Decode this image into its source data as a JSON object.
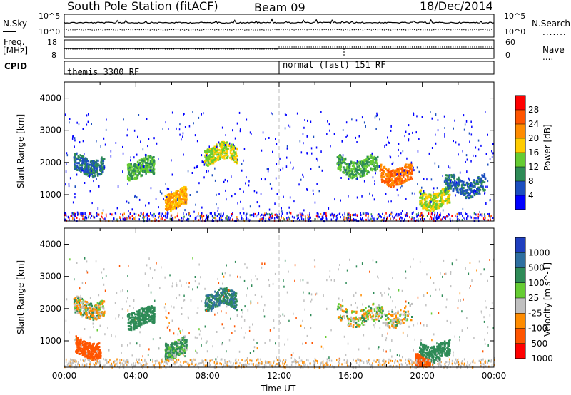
{
  "header": {
    "title": "South Pole Station (fitACF)",
    "beam": "Beam 09",
    "date": "18/Dec/2014"
  },
  "sidebar": {
    "nsky_label": "N.Sky",
    "freq_label_line1": "Freq.",
    "freq_label_line2": "[MHz]",
    "cpid_label": "CPID",
    "nsearch_label": "N.Search",
    "nave_label": "Nave"
  },
  "top_panels": {
    "noise_ticks_left": [
      "10^5",
      "10^0"
    ],
    "noise_ticks_right": [
      "10^5",
      "10^0"
    ],
    "freq_ticks_left": [
      "18",
      "8"
    ],
    "nave_ticks_right": [
      "60",
      "0"
    ],
    "cpid_segments": [
      "themis 3300 RF",
      "normal (fast) 151 RF"
    ]
  },
  "colors": {
    "power": [
      "#0000ff",
      "#1c4fbf",
      "#2e8b57",
      "#66cc33",
      "#ffcc00",
      "#ff8c00",
      "#ff5500",
      "#ff0000"
    ],
    "velocity": [
      "#1f3fbf",
      "#2e6fa0",
      "#2e8b57",
      "#66cc33",
      "#c0c0c0",
      "#ff8c00",
      "#ff5500",
      "#ff0000"
    ],
    "ground_scatter": "#c0c0c0"
  },
  "chart_data": [
    {
      "type": "heatmap",
      "name": "power",
      "xlabel": "",
      "ylabel": "Slant Range [km]",
      "ylim": [
        180,
        4500
      ],
      "yticks": [
        "1000",
        "2000",
        "3000",
        "4000"
      ],
      "xlim": [
        "00:00",
        "24:00"
      ],
      "colorbar_label": "Power [dB]",
      "colorbar_ticks": [
        "4",
        "8",
        "12",
        "16",
        "20",
        "24",
        "28"
      ],
      "features": [
        {
          "t_start": 0.5,
          "t_end": 2.2,
          "r_center": 1950,
          "level": 8
        },
        {
          "t_start": 3.5,
          "t_end": 5.0,
          "r_center": 1850,
          "level": 12
        },
        {
          "t_start": 5.6,
          "t_end": 6.8,
          "r_center": 900,
          "level": 20
        },
        {
          "t_start": 7.8,
          "t_end": 9.6,
          "r_center": 2300,
          "level": 16
        },
        {
          "t_start": 15.2,
          "t_end": 17.5,
          "r_center": 1900,
          "level": 12
        },
        {
          "t_start": 17.6,
          "t_end": 19.4,
          "r_center": 1650,
          "level": 24
        },
        {
          "t_start": 19.8,
          "t_end": 21.5,
          "r_center": 900,
          "level": 16
        },
        {
          "t_start": 21.2,
          "t_end": 23.5,
          "r_center": 1300,
          "level": 8
        }
      ]
    },
    {
      "type": "heatmap",
      "name": "velocity",
      "xlabel": "Time UT",
      "ylabel": "Slant Range [km]",
      "ylim": [
        180,
        4500
      ],
      "yticks": [
        "1000",
        "2000",
        "3000",
        "4000"
      ],
      "xlim": [
        "00:00",
        "24:00"
      ],
      "xticks": [
        "00:00",
        "04:00",
        "08:00",
        "12:00",
        "16:00",
        "20:00",
        "00:00"
      ],
      "colorbar_label": "Velocity [m s^-1]",
      "colorbar_ticks": [
        "1000",
        "500",
        "100",
        "25",
        "-25",
        "-100",
        "-500",
        "-1000"
      ],
      "features": [
        {
          "t_start": 0.5,
          "t_end": 2.2,
          "r_center": 2050,
          "velocity": 0
        },
        {
          "t_start": 0.6,
          "t_end": 2.0,
          "r_center": 800,
          "velocity": -300
        },
        {
          "t_start": 3.5,
          "t_end": 5.0,
          "r_center": 1750,
          "velocity": 150
        },
        {
          "t_start": 5.6,
          "t_end": 6.8,
          "r_center": 800,
          "velocity": 80
        },
        {
          "t_start": 7.8,
          "t_end": 9.6,
          "r_center": 2300,
          "velocity": 300
        },
        {
          "t_start": 15.2,
          "t_end": 19.4,
          "r_center": 1800,
          "velocity": 0
        },
        {
          "t_start": 19.8,
          "t_end": 21.5,
          "r_center": 700,
          "velocity": 200
        },
        {
          "t_start": 19.6,
          "t_end": 20.4,
          "r_center": 300,
          "velocity": -400
        }
      ]
    }
  ]
}
